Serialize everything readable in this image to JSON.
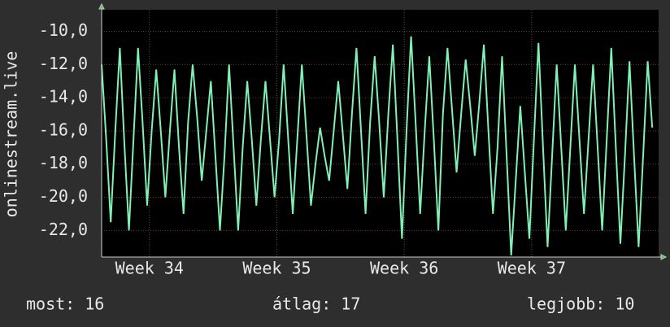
{
  "chart_data": {
    "type": "line",
    "ylabel": "onlinestream.live",
    "x": [
      0,
      1,
      2,
      3,
      4,
      5,
      6,
      7,
      8,
      9,
      10,
      11,
      12,
      13,
      14,
      15,
      16,
      17,
      18,
      19,
      20,
      21,
      22,
      23,
      24,
      25,
      26,
      27,
      28,
      29,
      30,
      31,
      32,
      33,
      34,
      35,
      36,
      37,
      38,
      39,
      40,
      41,
      42,
      43,
      44,
      45,
      46,
      47,
      48,
      49,
      50,
      51,
      52,
      53,
      54,
      55,
      56,
      57,
      58,
      59,
      60,
      61,
      62,
      63,
      64,
      65,
      66,
      67,
      68,
      69,
      70,
      71,
      72,
      73,
      74,
      75,
      76,
      77,
      78,
      79,
      80,
      81,
      82,
      83,
      84,
      85,
      86,
      87,
      88,
      89,
      90,
      91,
      92,
      93,
      94,
      95,
      96,
      97,
      98,
      99,
      100,
      101,
      102,
      103,
      104,
      105,
      106,
      107,
      108,
      109,
      110,
      111,
      112,
      113,
      114,
      115,
      116,
      117,
      118,
      119,
      120,
      121
    ],
    "series": [
      {
        "color": "#80f0b4",
        "values": [
          -12,
          -16.5,
          -21.5,
          -16,
          -11,
          -16.8,
          -22,
          -16.5,
          -11,
          -15.5,
          -20.5,
          -16,
          -12.3,
          -16,
          -20,
          -16,
          -12.3,
          -17,
          -21,
          -15.5,
          -12,
          -15.2,
          -19,
          -16,
          -13,
          -17.5,
          -22,
          -17.5,
          -12,
          -17,
          -22,
          -17,
          -13,
          -16.5,
          -20.5,
          -16.5,
          -13,
          -16.5,
          -20,
          -16.5,
          -12,
          -16.5,
          -21,
          -16.5,
          -12,
          -16.2,
          -20.5,
          -18,
          -15.8,
          -17.5,
          -19,
          -16,
          -13,
          -16.2,
          -19.5,
          -15,
          -11,
          -16,
          -21,
          -15.5,
          -11.5,
          -15.5,
          -20,
          -15,
          -10.8,
          -16.5,
          -22.5,
          -16,
          -10.3,
          -15.5,
          -21,
          -16,
          -11.5,
          -16.5,
          -22,
          -15,
          -11,
          -14.7,
          -18.5,
          -15,
          -11.7,
          -14.5,
          -17.5,
          -14.3,
          -10.8,
          -16,
          -21,
          -17,
          -11.5,
          -17.5,
          -23.5,
          -19,
          -14.5,
          -18.5,
          -22.5,
          -16.5,
          -10.7,
          -17,
          -23,
          -17.5,
          -12,
          -17,
          -22,
          -17,
          -12,
          -16.5,
          -21,
          -16.5,
          -12,
          -17,
          -22,
          -16.5,
          -11,
          -17,
          -22.8,
          -17.5,
          -11.8,
          -17.5,
          -23,
          -17.5,
          -11.8,
          -15.8
        ]
      }
    ],
    "xlim": [
      0,
      122.4
    ],
    "xticks": [
      {
        "value": 10.5,
        "label": "Week 34"
      },
      {
        "value": 38.5,
        "label": "Week 35"
      },
      {
        "value": 66.5,
        "label": "Week 36"
      },
      {
        "value": 94.5,
        "label": "Week 37"
      }
    ],
    "ylim": [
      -23.6,
      -8.7
    ],
    "yticks": [
      {
        "value": -10,
        "label": "-10,0"
      },
      {
        "value": -12,
        "label": "-12,0"
      },
      {
        "value": -14,
        "label": "-14,0"
      },
      {
        "value": -16,
        "label": "-16,0"
      },
      {
        "value": -18,
        "label": "-18,0"
      },
      {
        "value": -20,
        "label": "-20,0"
      },
      {
        "value": -22,
        "label": "-22,0"
      }
    ],
    "grid": true,
    "footer": [
      "most: 16",
      "átlag: 17",
      "legjobb: 10"
    ]
  }
}
